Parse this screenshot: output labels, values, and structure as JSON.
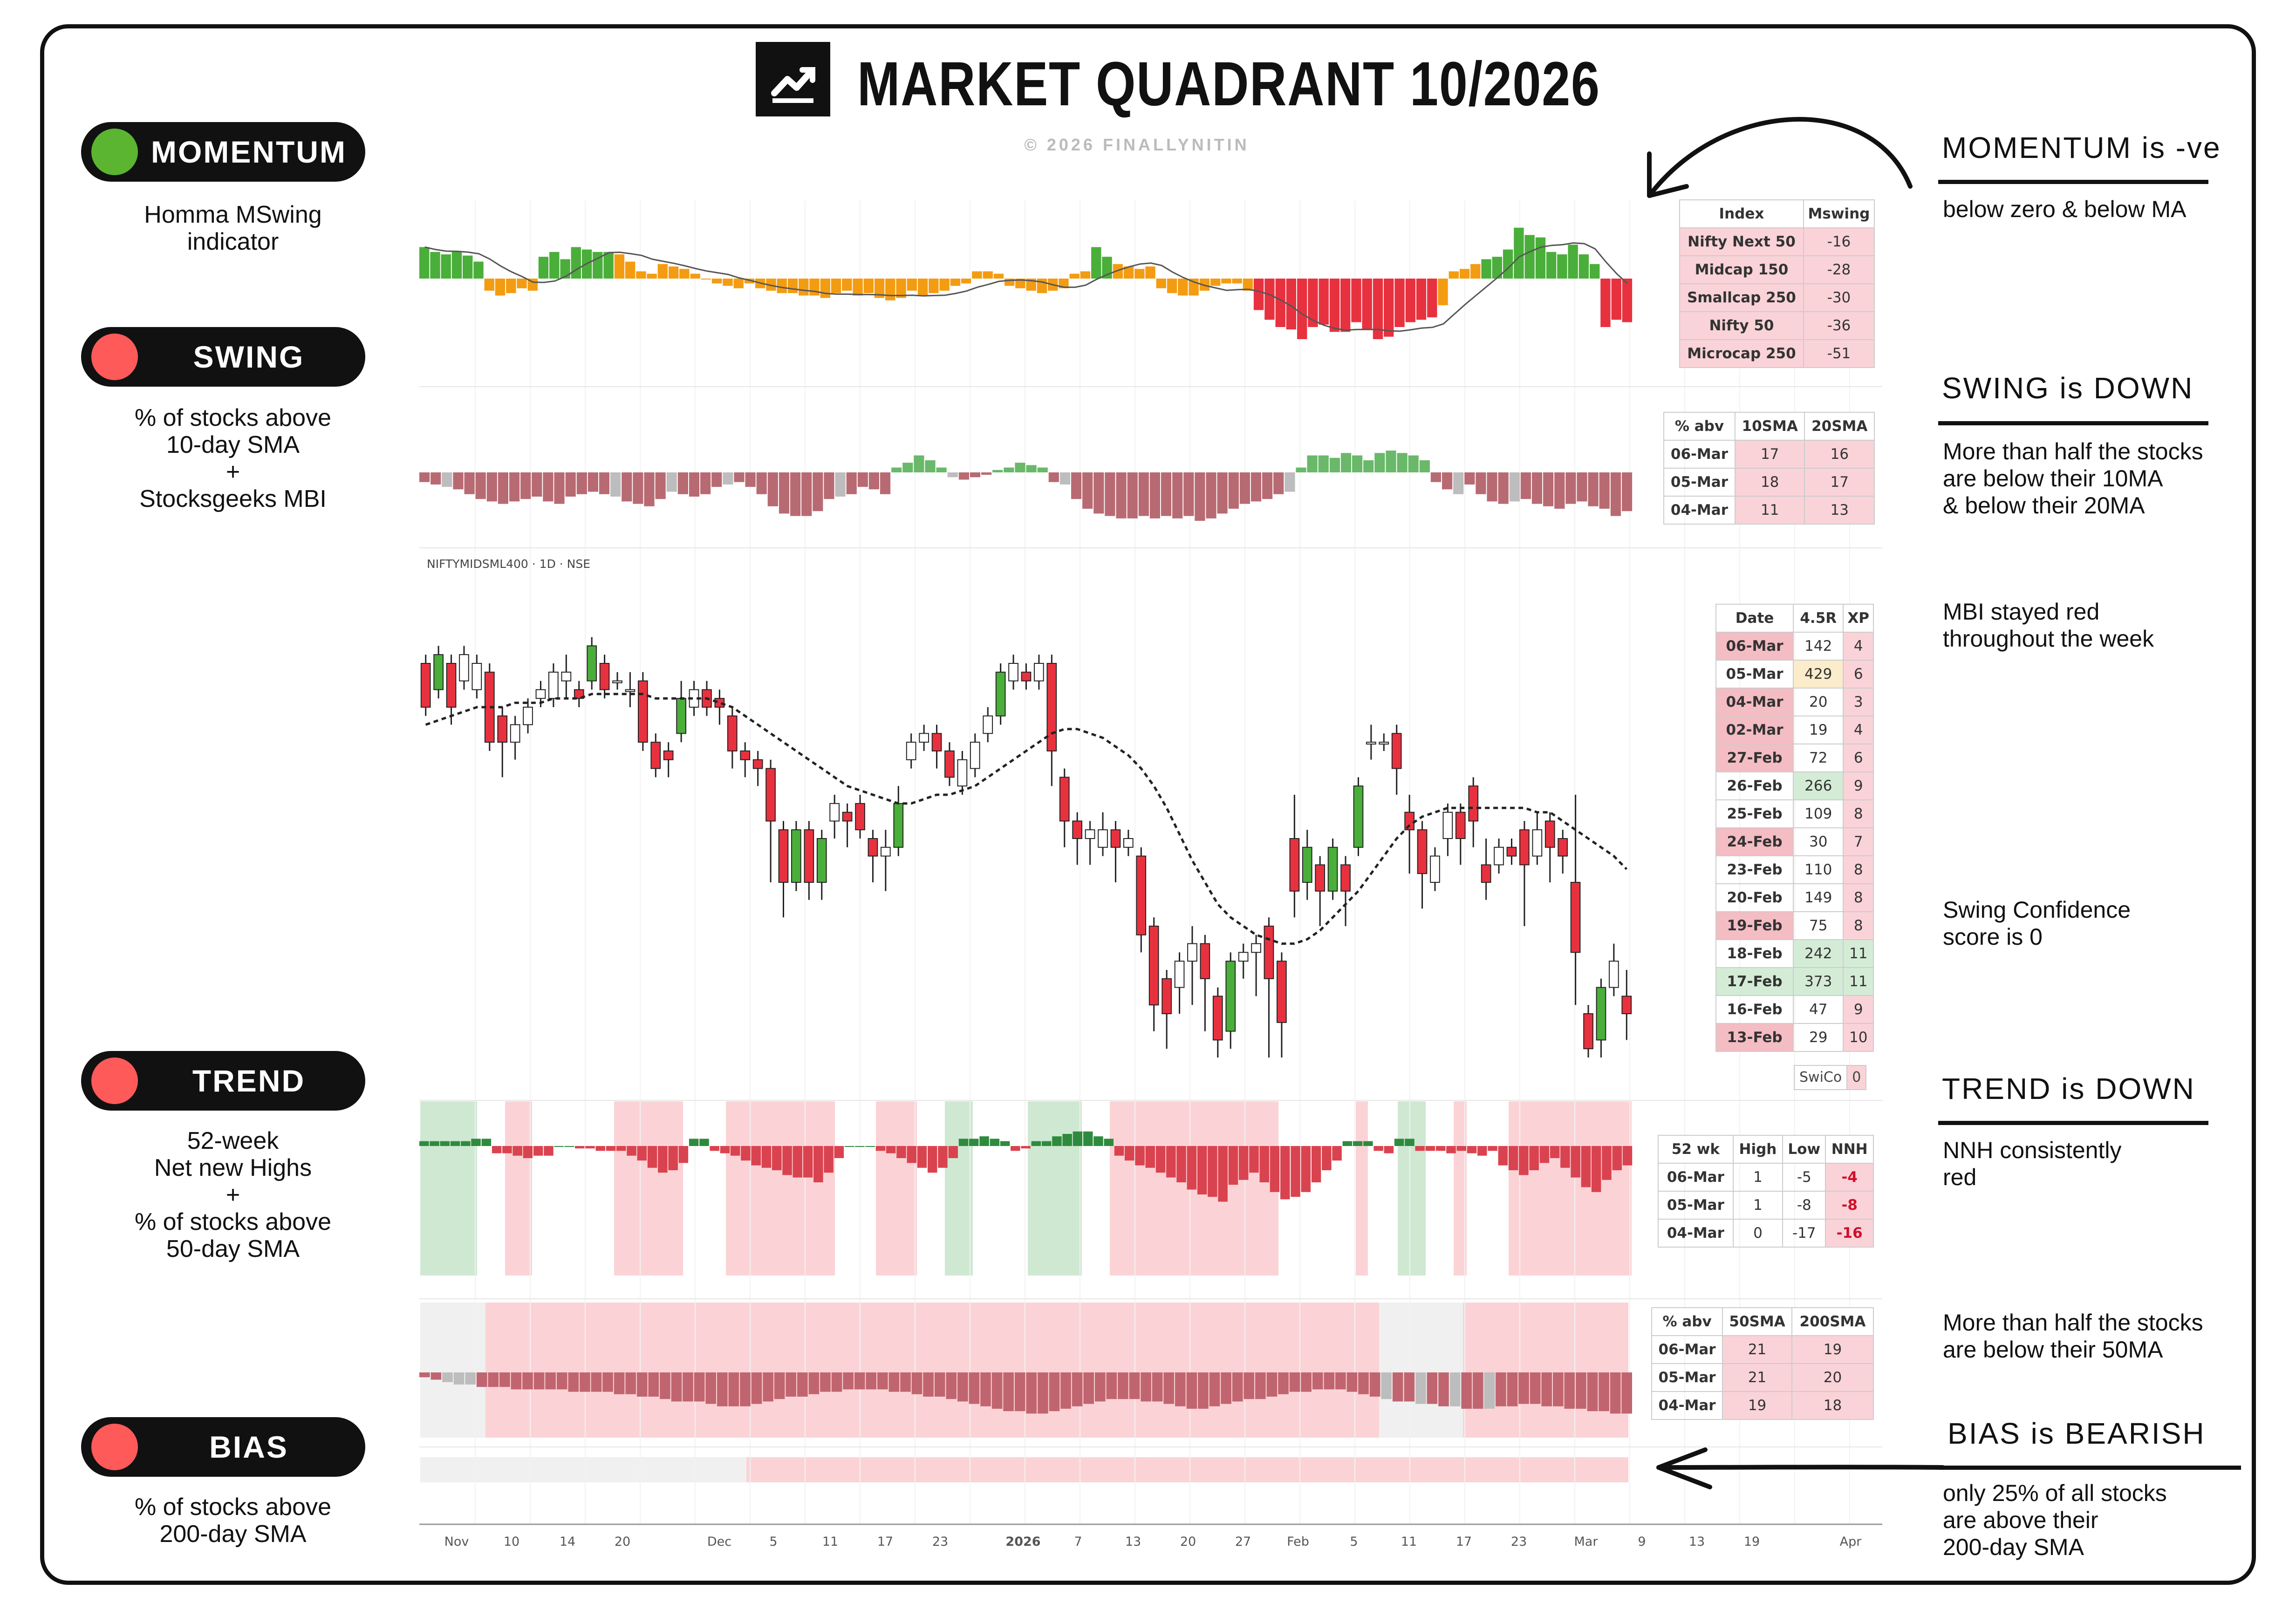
{
  "title": "MARKET QUADRANT 10/2026",
  "copyright": "© 2026 FINALLYNITIN",
  "left_panel": [
    {
      "label": "MOMENTUM",
      "dot_color": "#5bb531",
      "desc": [
        "Homma MSwing",
        "indicator"
      ]
    },
    {
      "label": "SWING",
      "dot_color": "#ff5a5a",
      "desc": [
        "% of stocks above",
        "10-day SMA",
        "+",
        "Stocksgeeks MBI"
      ]
    },
    {
      "label": "TREND",
      "dot_color": "#ff5a5a",
      "desc": [
        "52-week",
        "Net new Highs",
        "+",
        "% of stocks above",
        "50-day SMA"
      ]
    },
    {
      "label": "BIAS",
      "dot_color": "#ff5a5a",
      "desc": [
        "% of stocks above",
        "200-day SMA"
      ]
    }
  ],
  "right_panel": {
    "momentum": {
      "heading": "MOMENTUM is -ve",
      "text": [
        "below zero & below MA"
      ]
    },
    "swing": {
      "heading": "SWING is DOWN",
      "text": [
        "More than half the stocks",
        "are below their 10MA",
        "& below their 20MA"
      ]
    },
    "mbi_note": [
      "MBI stayed red",
      "throughout the week"
    ],
    "swing_conf": [
      "Swing Confidence",
      "score is 0"
    ],
    "trend": {
      "heading": "TREND is DOWN",
      "text": [
        "NNH consistently",
        "red"
      ]
    },
    "trend_note": [
      "More than half the stocks",
      "are below their 50MA"
    ],
    "bias": {
      "heading": "BIAS is BEARISH",
      "text": [
        "only 25% of all stocks",
        "are above their",
        "200-day SMA"
      ]
    }
  },
  "symbol_label": "NIFTYMIDSML400 · 1D · NSE",
  "mswing_table": {
    "headers": [
      "Index",
      "Mswing"
    ],
    "rows": [
      [
        "Nifty Next 50",
        "-16"
      ],
      [
        "Midcap 150",
        "-28"
      ],
      [
        "Smallcap 250",
        "-30"
      ],
      [
        "Nifty 50",
        "-36"
      ],
      [
        "Microcap 250",
        "-51"
      ]
    ]
  },
  "sma10_table": {
    "headers": [
      "% abv",
      "10SMA",
      "20SMA"
    ],
    "rows": [
      [
        "06-Mar",
        "17",
        "16"
      ],
      [
        "05-Mar",
        "18",
        "17"
      ],
      [
        "04-Mar",
        "11",
        "13"
      ]
    ]
  },
  "mbi_table": {
    "headers": [
      "Date",
      "4.5R",
      "XP"
    ],
    "rows": [
      [
        "06-Mar",
        "142",
        "4"
      ],
      [
        "05-Mar",
        "429",
        "6"
      ],
      [
        "04-Mar",
        "20",
        "3"
      ],
      [
        "02-Mar",
        "19",
        "4"
      ],
      [
        "27-Feb",
        "72",
        "6"
      ],
      [
        "26-Feb",
        "266",
        "9"
      ],
      [
        "25-Feb",
        "109",
        "8"
      ],
      [
        "24-Feb",
        "30",
        "7"
      ],
      [
        "23-Feb",
        "110",
        "8"
      ],
      [
        "20-Feb",
        "149",
        "8"
      ],
      [
        "19-Feb",
        "75",
        "8"
      ],
      [
        "18-Feb",
        "242",
        "11"
      ],
      [
        "17-Feb",
        "373",
        "11"
      ],
      [
        "16-Feb",
        "47",
        "9"
      ],
      [
        "13-Feb",
        "29",
        "10"
      ]
    ]
  },
  "swico": {
    "label": "SwiCo",
    "value": "0"
  },
  "nnh_table": {
    "headers": [
      "52 wk",
      "High",
      "Low",
      "NNH"
    ],
    "rows": [
      [
        "06-Mar",
        "1",
        "-5",
        "-4"
      ],
      [
        "05-Mar",
        "1",
        "-8",
        "-8"
      ],
      [
        "04-Mar",
        "0",
        "-17",
        "-16"
      ]
    ]
  },
  "sma50_table": {
    "headers": [
      "% abv",
      "50SMA",
      "200SMA"
    ],
    "rows": [
      [
        "06-Mar",
        "21",
        "19"
      ],
      [
        "05-Mar",
        "21",
        "20"
      ],
      [
        "04-Mar",
        "19",
        "18"
      ]
    ]
  },
  "chart_data": [
    {
      "type": "bar",
      "name_hint": "Homma MSwing",
      "values": [
        26,
        22,
        20,
        22,
        19,
        14,
        -10,
        -14,
        -12,
        -8,
        -10,
        18,
        22,
        16,
        26,
        24,
        22,
        22,
        20,
        14,
        6,
        4,
        12,
        10,
        8,
        4,
        0,
        -4,
        -6,
        -8,
        -4,
        -8,
        -10,
        -12,
        -12,
        -14,
        -14,
        -16,
        -12,
        -10,
        -14,
        -12,
        -16,
        -18,
        -16,
        -10,
        -14,
        -12,
        -10,
        -6,
        -4,
        6,
        6,
        4,
        -6,
        -8,
        -10,
        -12,
        -10,
        -8,
        4,
        6,
        26,
        18,
        12,
        10,
        8,
        10,
        -8,
        -12,
        -14,
        -14,
        -10,
        -6,
        -4,
        -4,
        -10,
        -26,
        -34,
        -40,
        -42,
        -50,
        -40,
        -38,
        -44,
        -44,
        -36,
        -42,
        -50,
        -48,
        -40,
        -36,
        -34,
        -32,
        -22,
        6,
        8,
        12,
        16,
        18,
        24,
        42,
        36,
        34,
        22,
        20,
        28,
        20,
        12,
        -40,
        -34,
        -36
      ]
    },
    {
      "type": "bar",
      "name_hint": "% of stocks above 10/20 SMA",
      "values": [
        -8,
        -10,
        -12,
        -14,
        -18,
        -22,
        -24,
        -26,
        -24,
        -22,
        -20,
        -24,
        -26,
        -20,
        -18,
        -16,
        -18,
        -20,
        -24,
        -26,
        -28,
        -22,
        -16,
        -18,
        -20,
        -18,
        -12,
        -10,
        -8,
        -12,
        -18,
        -28,
        -34,
        -36,
        -36,
        -32,
        -22,
        -20,
        -18,
        -12,
        -14,
        -18,
        4,
        8,
        14,
        10,
        4,
        -4,
        -6,
        -4,
        -2,
        2,
        4,
        8,
        6,
        4,
        -8,
        -10,
        -22,
        -30,
        -34,
        -36,
        -38,
        -38,
        -36,
        -38,
        -36,
        -38,
        -36,
        -40,
        -38,
        -34,
        -30,
        -26,
        -24,
        -22,
        -18,
        -16,
        4,
        14,
        14,
        12,
        16,
        14,
        10,
        16,
        18,
        16,
        14,
        10,
        -8,
        -14,
        -18,
        -10,
        -18,
        -24,
        -26,
        -24,
        -22,
        -26,
        -28,
        -30,
        -26,
        -24,
        -28,
        -30,
        -36,
        -32
      ]
    },
    {
      "type": "candlestick",
      "name_hint": "NIFTYMIDSML400 daily",
      "note": "relative price index, 0=bottom of pane, 100=top",
      "candles": [
        [
          90,
          80,
          92,
          78
        ],
        [
          84,
          92,
          94,
          82
        ],
        [
          90,
          80,
          92,
          76
        ],
        [
          86,
          92,
          94,
          84
        ],
        [
          84,
          90,
          92,
          82
        ],
        [
          88,
          72,
          90,
          70
        ],
        [
          78,
          72,
          80,
          64
        ],
        [
          72,
          76,
          78,
          68
        ],
        [
          76,
          80,
          82,
          74
        ],
        [
          82,
          84,
          86,
          80
        ],
        [
          82,
          88,
          90,
          80
        ],
        [
          86,
          88,
          92,
          82
        ],
        [
          84,
          82,
          86,
          80
        ],
        [
          86,
          94,
          96,
          84
        ],
        [
          90,
          84,
          92,
          82
        ],
        [
          86,
          86,
          88,
          84
        ],
        [
          84,
          84,
          88,
          80
        ],
        [
          86,
          72,
          88,
          70
        ],
        [
          72,
          66,
          74,
          64
        ],
        [
          70,
          68,
          72,
          64
        ],
        [
          74,
          82,
          86,
          72
        ],
        [
          80,
          84,
          86,
          78
        ],
        [
          84,
          80,
          86,
          78
        ],
        [
          82,
          80,
          84,
          76
        ],
        [
          78,
          70,
          80,
          66
        ],
        [
          70,
          68,
          72,
          64
        ],
        [
          68,
          66,
          70,
          62
        ],
        [
          66,
          54,
          68,
          40
        ],
        [
          52,
          40,
          54,
          32
        ],
        [
          40,
          52,
          54,
          38
        ],
        [
          52,
          40,
          54,
          36
        ],
        [
          40,
          50,
          52,
          36
        ],
        [
          54,
          58,
          60,
          50
        ],
        [
          56,
          54,
          58,
          48
        ],
        [
          58,
          52,
          60,
          50
        ],
        [
          50,
          46,
          52,
          40
        ],
        [
          46,
          48,
          52,
          38
        ],
        [
          48,
          58,
          62,
          46
        ],
        [
          68,
          72,
          74,
          66
        ],
        [
          72,
          74,
          76,
          70
        ],
        [
          74,
          70,
          76,
          66
        ],
        [
          70,
          64,
          72,
          62
        ],
        [
          62,
          68,
          70,
          60
        ],
        [
          66,
          72,
          74,
          64
        ],
        [
          74,
          78,
          80,
          72
        ],
        [
          78,
          88,
          90,
          76
        ],
        [
          86,
          90,
          92,
          84
        ],
        [
          88,
          86,
          90,
          84
        ],
        [
          86,
          90,
          92,
          84
        ],
        [
          90,
          70,
          92,
          62
        ],
        [
          64,
          54,
          66,
          48
        ],
        [
          54,
          50,
          56,
          44
        ],
        [
          50,
          52,
          54,
          44
        ],
        [
          48,
          52,
          56,
          46
        ],
        [
          52,
          48,
          54,
          40
        ],
        [
          48,
          50,
          52,
          46
        ],
        [
          46,
          28,
          48,
          24
        ],
        [
          30,
          12,
          32,
          6
        ],
        [
          18,
          10,
          20,
          2
        ],
        [
          16,
          22,
          24,
          10
        ],
        [
          22,
          26,
          30,
          12
        ],
        [
          26,
          18,
          28,
          6
        ],
        [
          14,
          4,
          16,
          0
        ],
        [
          6,
          22,
          24,
          2
        ],
        [
          22,
          24,
          26,
          18
        ],
        [
          24,
          26,
          28,
          14
        ],
        [
          30,
          18,
          32,
          0
        ],
        [
          22,
          8,
          24,
          0
        ],
        [
          50,
          38,
          60,
          32
        ],
        [
          40,
          48,
          52,
          36
        ],
        [
          44,
          38,
          46,
          30
        ],
        [
          38,
          48,
          50,
          36
        ],
        [
          44,
          38,
          46,
          30
        ],
        [
          48,
          62,
          64,
          46
        ],
        [
          72,
          72,
          76,
          68
        ],
        [
          72,
          72,
          74,
          70
        ],
        [
          74,
          66,
          76,
          60
        ],
        [
          56,
          52,
          60,
          42
        ],
        [
          52,
          42,
          54,
          34
        ],
        [
          40,
          46,
          48,
          38
        ],
        [
          50,
          56,
          58,
          46
        ],
        [
          56,
          50,
          58,
          44
        ],
        [
          62,
          54,
          64,
          48
        ],
        [
          44,
          40,
          50,
          36
        ],
        [
          44,
          48,
          50,
          42
        ],
        [
          48,
          46,
          50,
          44
        ],
        [
          52,
          44,
          54,
          30
        ],
        [
          46,
          52,
          56,
          44
        ],
        [
          54,
          48,
          56,
          40
        ],
        [
          50,
          46,
          52,
          42
        ],
        [
          40,
          24,
          60,
          12
        ],
        [
          10,
          2,
          12,
          0
        ],
        [
          4,
          16,
          18,
          0
        ],
        [
          16,
          22,
          26,
          14
        ],
        [
          14,
          10,
          20,
          4
        ]
      ],
      "ma": [
        76,
        77,
        78,
        79,
        80,
        80,
        80,
        81,
        81,
        81,
        82,
        82,
        82,
        83,
        83,
        83,
        83,
        83,
        82,
        82,
        82,
        82,
        82,
        81,
        80,
        78,
        76,
        74,
        72,
        70,
        68,
        66,
        64,
        62,
        61,
        60,
        59,
        58,
        58,
        59,
        60,
        60,
        61,
        62,
        64,
        66,
        68,
        70,
        72,
        74,
        75,
        75,
        74,
        73,
        71,
        69,
        66,
        62,
        57,
        51,
        45,
        40,
        35,
        32,
        30,
        28,
        27,
        26,
        26,
        27,
        29,
        32,
        35,
        38,
        42,
        46,
        50,
        53,
        55,
        56,
        57,
        57,
        57,
        57,
        57,
        57,
        57,
        56,
        56,
        54,
        52,
        50,
        48,
        46,
        43
      ]
    },
    {
      "type": "bar",
      "name_hint": "52-week Net new Highs",
      "values": [
        4,
        4,
        4,
        4,
        4,
        6,
        6,
        -6,
        -6,
        -8,
        -10,
        -8,
        -8,
        0,
        0,
        -2,
        -2,
        -4,
        -4,
        -4,
        -8,
        -12,
        -18,
        -22,
        -20,
        -14,
        6,
        6,
        -4,
        -6,
        -8,
        -12,
        -16,
        -18,
        -20,
        -24,
        -26,
        -26,
        -30,
        -22,
        -10,
        0,
        0,
        0,
        -4,
        -6,
        -10,
        -14,
        -18,
        -22,
        -18,
        -10,
        6,
        6,
        8,
        6,
        4,
        -4,
        -2,
        4,
        4,
        8,
        10,
        12,
        12,
        8,
        6,
        -8,
        -12,
        -16,
        -18,
        -22,
        -26,
        -30,
        -36,
        -40,
        -42,
        -46,
        -32,
        -28,
        -22,
        -30,
        -38,
        -44,
        -42,
        -38,
        -30,
        -20,
        -12,
        4,
        4,
        4,
        -4,
        -6,
        6,
        6,
        -4,
        -4,
        -4,
        -6,
        -4,
        -6,
        -8,
        -4,
        -16,
        -20,
        -24,
        -20,
        -14,
        -10,
        -18,
        -26,
        -34,
        -38,
        -28,
        -20,
        -16
      ]
    },
    {
      "type": "bar",
      "name_hint": "% of stocks above 50-day SMA",
      "values": [
        -4,
        -6,
        -8,
        -10,
        -10,
        -12,
        -12,
        -12,
        -14,
        -14,
        -14,
        -14,
        -14,
        -16,
        -16,
        -16,
        -16,
        -18,
        -18,
        -20,
        -20,
        -22,
        -24,
        -24,
        -24,
        -26,
        -28,
        -28,
        -28,
        -26,
        -24,
        -22,
        -20,
        -20,
        -18,
        -16,
        -16,
        -14,
        -14,
        -14,
        -14,
        -16,
        -16,
        -18,
        -20,
        -20,
        -22,
        -24,
        -26,
        -28,
        -30,
        -32,
        -32,
        -34,
        -34,
        -32,
        -30,
        -28,
        -26,
        -24,
        -22,
        -22,
        -22,
        -24,
        -24,
        -26,
        -28,
        -30,
        -30,
        -28,
        -26,
        -24,
        -22,
        -22,
        -20,
        -18,
        -16,
        -16,
        -14,
        -14,
        -14,
        -16,
        -18,
        -20,
        -22,
        -24,
        -24,
        -26,
        -26,
        -28,
        -28,
        -30,
        -30,
        -30,
        -28,
        -28,
        -26,
        -26,
        -28,
        -28,
        -30,
        -30,
        -32,
        -32,
        -34,
        -34
      ]
    }
  ],
  "x_axis_ticks": [
    "Nov",
    "10",
    "14",
    "20",
    "Dec",
    "5",
    "11",
    "17",
    "23",
    "2026",
    "7",
    "13",
    "20",
    "27",
    "Feb",
    "5",
    "11",
    "17",
    "23",
    "Mar",
    "9",
    "13",
    "19",
    "Apr"
  ]
}
